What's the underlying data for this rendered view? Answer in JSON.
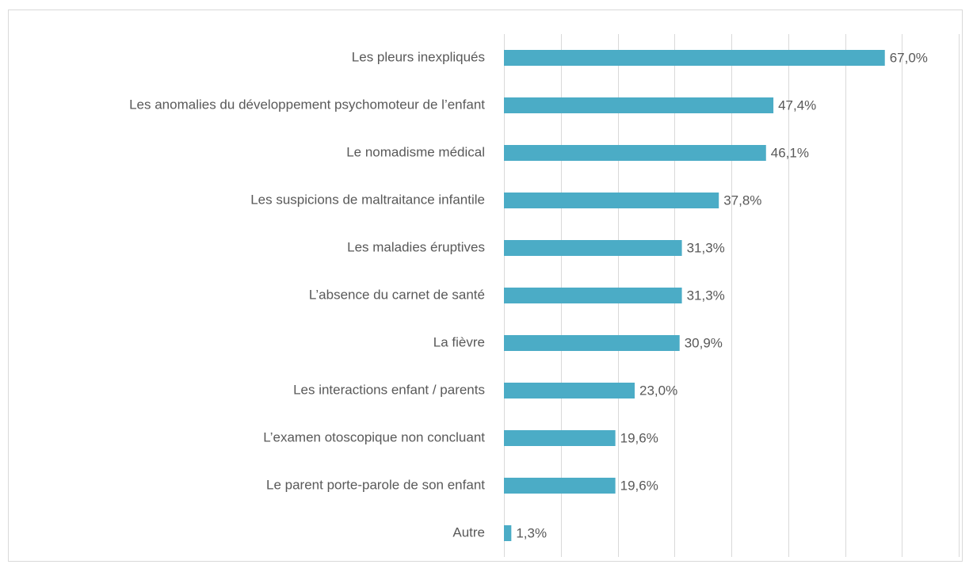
{
  "chart_data": {
    "type": "bar",
    "orientation": "horizontal",
    "categories": [
      "Les pleurs inexpliqués",
      "Les anomalies du développement psychomoteur de l’enfant",
      "Le nomadisme médical",
      "Les suspicions de maltraitance infantile",
      "Les maladies éruptives",
      "L’absence du carnet de santé",
      "La fièvre",
      "Les interactions enfant / parents",
      "L’examen otoscopique non concluant",
      "Le parent porte-parole de son enfant",
      "Autre"
    ],
    "values": [
      67.0,
      47.4,
      46.1,
      37.8,
      31.3,
      31.3,
      30.9,
      23.0,
      19.6,
      19.6,
      1.3
    ],
    "value_labels": [
      "67,0%",
      "47,4%",
      "46,1%",
      "37,8%",
      "31,3%",
      "31,3%",
      "30,9%",
      "23,0%",
      "19,6%",
      "19,6%",
      "1,3%"
    ],
    "color": "#4bacc6",
    "xlim": [
      0,
      80
    ],
    "xticks": [
      0,
      10,
      20,
      30,
      40,
      50,
      60,
      70,
      80
    ],
    "grid": true
  }
}
